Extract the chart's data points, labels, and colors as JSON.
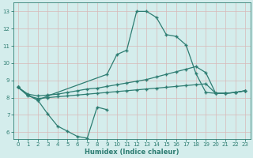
{
  "xlabel": "Humidex (Indice chaleur)",
  "bg_color": "#d4edec",
  "grid_color": "#c0d8d8",
  "line_color": "#2e7d72",
  "xlim": [
    -0.5,
    23.5
  ],
  "ylim": [
    5.6,
    13.5
  ],
  "xticks": [
    0,
    1,
    2,
    3,
    4,
    5,
    6,
    7,
    8,
    9,
    10,
    11,
    12,
    13,
    14,
    15,
    16,
    17,
    18,
    19,
    20,
    21,
    22,
    23
  ],
  "yticks": [
    6,
    7,
    8,
    9,
    10,
    11,
    12,
    13
  ],
  "line1_x": [
    0,
    1,
    2,
    3,
    4,
    5,
    6,
    7,
    8,
    9
  ],
  "line1_y": [
    8.6,
    8.15,
    7.85,
    7.05,
    6.35,
    6.05,
    5.75,
    5.65,
    7.45,
    7.3
  ],
  "line2_x": [
    0,
    1,
    2,
    3,
    9,
    10,
    11,
    12,
    13,
    14,
    15,
    16,
    17,
    18,
    19,
    20,
    21,
    22,
    23
  ],
  "line2_y": [
    8.6,
    8.15,
    7.85,
    8.1,
    9.35,
    10.5,
    10.75,
    13.0,
    13.0,
    12.65,
    11.65,
    11.55,
    11.05,
    9.4,
    8.3,
    8.25,
    8.25,
    8.3,
    8.4
  ],
  "line3_x": [
    0,
    1,
    2,
    3,
    4,
    5,
    6,
    7,
    8,
    9,
    10,
    11,
    12,
    13,
    14,
    15,
    16,
    17,
    18,
    19,
    20,
    21,
    22,
    23
  ],
  "line3_y": [
    8.6,
    8.2,
    8.1,
    8.15,
    8.2,
    8.3,
    8.4,
    8.5,
    8.55,
    8.65,
    8.75,
    8.85,
    8.95,
    9.05,
    9.2,
    9.35,
    9.5,
    9.65,
    9.8,
    9.45,
    8.25,
    8.25,
    8.3,
    8.4
  ],
  "line4_x": [
    0,
    1,
    2,
    3,
    4,
    5,
    6,
    7,
    8,
    9,
    10,
    11,
    12,
    13,
    14,
    15,
    16,
    17,
    18,
    19,
    20,
    21,
    22,
    23
  ],
  "line4_y": [
    8.6,
    8.1,
    7.95,
    8.0,
    8.05,
    8.1,
    8.15,
    8.2,
    8.25,
    8.3,
    8.35,
    8.4,
    8.45,
    8.5,
    8.55,
    8.6,
    8.65,
    8.7,
    8.75,
    8.8,
    8.25,
    8.25,
    8.3,
    8.4
  ]
}
